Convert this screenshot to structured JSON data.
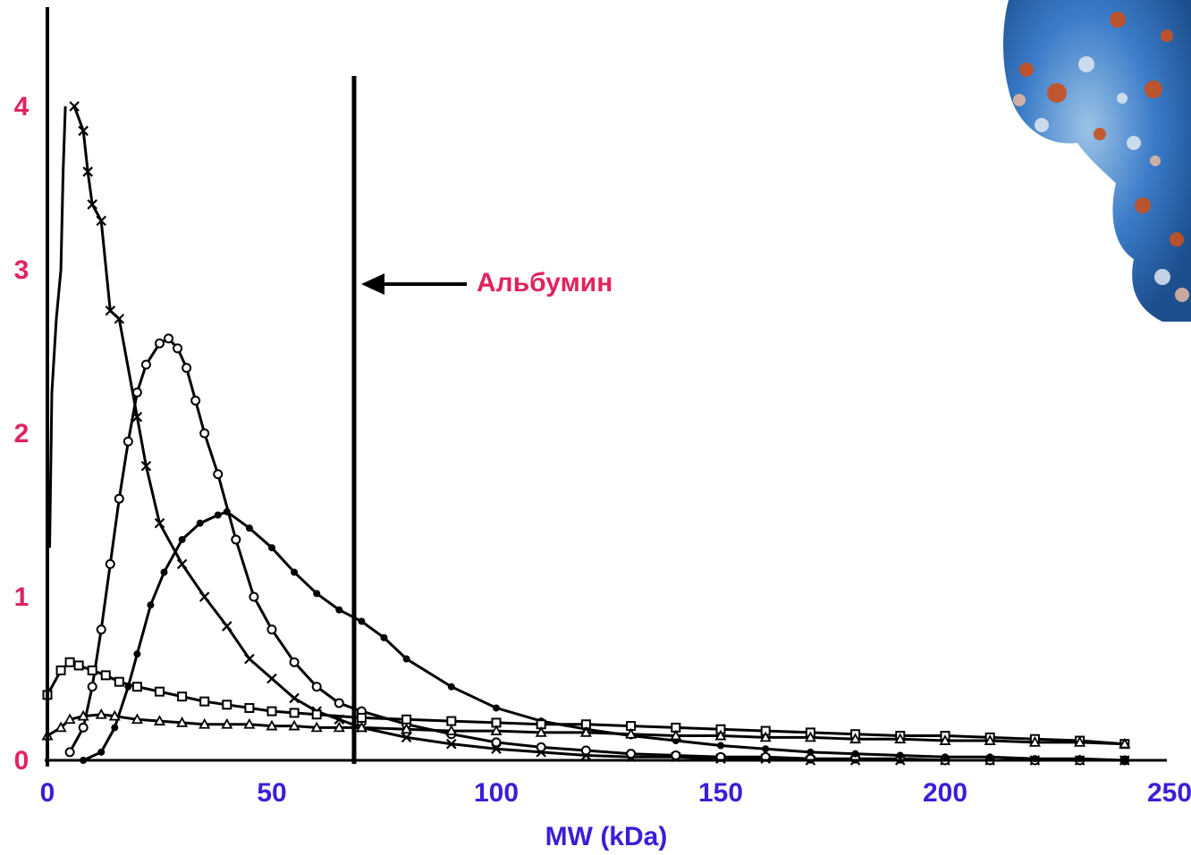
{
  "chart_data": {
    "type": "line",
    "xlabel": "MW (kDa)",
    "ylabel": "",
    "xlim": [
      0,
      250
    ],
    "ylim": [
      0,
      4.2
    ],
    "x_ticks": [
      "0",
      "50",
      "100",
      "150",
      "200",
      "250"
    ],
    "y_ticks": [
      "0",
      "1",
      "2",
      "3",
      "4"
    ],
    "grid": false,
    "annotation": {
      "text": "Альбумин",
      "x": 69,
      "y": 2.9
    },
    "albumin_peak": {
      "x": 69,
      "height": 4.2
    },
    "series": [
      {
        "marker": "cross",
        "x": [
          6,
          8,
          9,
          10,
          12,
          14,
          16,
          20,
          22,
          25,
          30,
          35,
          40,
          45,
          50,
          55,
          60,
          65,
          70,
          80,
          90,
          100,
          110,
          120,
          130,
          140,
          150,
          160,
          170,
          180,
          190,
          200,
          210,
          220,
          230,
          240
        ],
        "y": [
          4.0,
          3.85,
          3.6,
          3.4,
          3.3,
          2.75,
          2.7,
          2.1,
          1.8,
          1.45,
          1.2,
          1.0,
          0.82,
          0.62,
          0.5,
          0.38,
          0.3,
          0.25,
          0.2,
          0.14,
          0.1,
          0.07,
          0.05,
          0.03,
          0.02,
          0.02,
          0.01,
          0.01,
          0.0,
          0.0,
          0.0,
          0.0,
          0.0,
          0.0,
          0.0,
          0.0
        ]
      },
      {
        "marker": "open-circle",
        "x": [
          5,
          8,
          10,
          12,
          14,
          16,
          18,
          20,
          22,
          25,
          27,
          29,
          31,
          33,
          35,
          38,
          42,
          46,
          50,
          55,
          60,
          65,
          70,
          80,
          90,
          100,
          110,
          120,
          130,
          140,
          150,
          160,
          170,
          180,
          190,
          200,
          210,
          220,
          230,
          240
        ],
        "y": [
          0.05,
          0.2,
          0.45,
          0.8,
          1.2,
          1.6,
          1.95,
          2.25,
          2.42,
          2.55,
          2.58,
          2.52,
          2.4,
          2.2,
          2.0,
          1.75,
          1.35,
          1.0,
          0.8,
          0.6,
          0.45,
          0.35,
          0.3,
          0.22,
          0.16,
          0.11,
          0.08,
          0.06,
          0.04,
          0.03,
          0.02,
          0.02,
          0.01,
          0.01,
          0.01,
          0.0,
          0.0,
          0.0,
          0.0,
          0.0
        ]
      },
      {
        "marker": "filled-circle",
        "x": [
          8,
          12,
          15,
          18,
          20,
          23,
          26,
          30,
          34,
          38,
          40,
          45,
          50,
          55,
          60,
          65,
          70,
          75,
          80,
          90,
          100,
          110,
          120,
          130,
          140,
          150,
          160,
          170,
          180,
          190,
          200,
          210,
          220,
          230,
          240
        ],
        "y": [
          0.0,
          0.05,
          0.2,
          0.45,
          0.65,
          0.95,
          1.15,
          1.35,
          1.45,
          1.5,
          1.52,
          1.42,
          1.3,
          1.15,
          1.02,
          0.92,
          0.85,
          0.75,
          0.62,
          0.45,
          0.32,
          0.24,
          0.19,
          0.15,
          0.12,
          0.09,
          0.07,
          0.05,
          0.04,
          0.03,
          0.02,
          0.02,
          0.01,
          0.01,
          0.0
        ]
      },
      {
        "marker": "open-square",
        "x": [
          0,
          3,
          5,
          7,
          10,
          13,
          16,
          20,
          25,
          30,
          35,
          40,
          45,
          50,
          55,
          60,
          70,
          80,
          90,
          100,
          110,
          120,
          130,
          140,
          150,
          160,
          170,
          180,
          190,
          200,
          210,
          220,
          230,
          240
        ],
        "y": [
          0.4,
          0.55,
          0.6,
          0.58,
          0.55,
          0.52,
          0.48,
          0.45,
          0.42,
          0.39,
          0.36,
          0.34,
          0.32,
          0.3,
          0.29,
          0.28,
          0.26,
          0.25,
          0.24,
          0.23,
          0.22,
          0.22,
          0.21,
          0.2,
          0.19,
          0.18,
          0.17,
          0.16,
          0.15,
          0.15,
          0.14,
          0.13,
          0.12,
          0.1
        ]
      },
      {
        "marker": "triangle",
        "x": [
          0,
          3,
          5,
          8,
          12,
          15,
          20,
          25,
          30,
          35,
          40,
          45,
          50,
          55,
          60,
          65,
          70,
          80,
          90,
          100,
          110,
          120,
          130,
          140,
          150,
          160,
          170,
          180,
          190,
          200,
          210,
          220,
          230,
          240
        ],
        "y": [
          0.15,
          0.2,
          0.25,
          0.27,
          0.28,
          0.27,
          0.25,
          0.24,
          0.23,
          0.22,
          0.22,
          0.22,
          0.21,
          0.21,
          0.2,
          0.2,
          0.2,
          0.19,
          0.18,
          0.18,
          0.17,
          0.17,
          0.16,
          0.15,
          0.15,
          0.14,
          0.14,
          0.13,
          0.13,
          0.12,
          0.12,
          0.11,
          0.11,
          0.1
        ]
      },
      {
        "marker": "none",
        "x": [
          0.5,
          1,
          2,
          3,
          3.5,
          4
        ],
        "y": [
          1.3,
          2.25,
          2.7,
          3.0,
          3.6,
          4.0
        ]
      }
    ]
  }
}
